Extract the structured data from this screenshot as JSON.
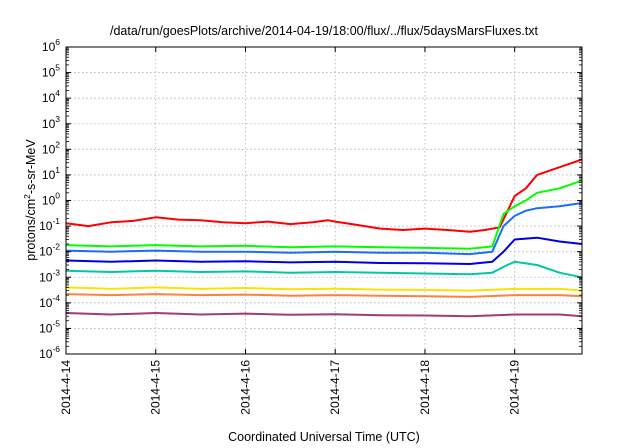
{
  "chart_data": {
    "type": "line",
    "title": "/data/run/goesPlots/archive/2014-04-19/18:00/flux/../flux/5daysMarsFluxes.txt",
    "xlabel": "Coordinated Universal Time (UTC)",
    "ylabel": "protons/cm²-s-sr-MeV",
    "ylabel_parts": {
      "pre": "protons/cm",
      "sup": "2",
      "post": "-s-sr-MeV"
    },
    "yscale": "log",
    "ylim": [
      1e-06,
      1000000.0
    ],
    "y_ticks": [
      {
        "base": "10",
        "exp": "-6",
        "value": 1e-06
      },
      {
        "base": "10",
        "exp": "-5",
        "value": 1e-05
      },
      {
        "base": "10",
        "exp": "-4",
        "value": 0.0001
      },
      {
        "base": "10",
        "exp": "-3",
        "value": 0.001
      },
      {
        "base": "10",
        "exp": "-2",
        "value": 0.01
      },
      {
        "base": "10",
        "exp": "-1",
        "value": 0.1
      },
      {
        "base": "10",
        "exp": "0",
        "value": 1
      },
      {
        "base": "10",
        "exp": "1",
        "value": 10.0
      },
      {
        "base": "10",
        "exp": "2",
        "value": 100.0
      },
      {
        "base": "10",
        "exp": "3",
        "value": 1000.0
      },
      {
        "base": "10",
        "exp": "4",
        "value": 10000.0
      },
      {
        "base": "10",
        "exp": "5",
        "value": 100000.0
      },
      {
        "base": "10",
        "exp": "6",
        "value": 1000000.0
      }
    ],
    "xlim": [
      "2014-04-14",
      "2014-04-19T18:00"
    ],
    "x_ticks": [
      {
        "label": "2014-4-14",
        "date": "2014-04-14"
      },
      {
        "label": "2014-4-15",
        "date": "2014-04-15"
      },
      {
        "label": "2014-4-16",
        "date": "2014-04-16"
      },
      {
        "label": "2014-4-17",
        "date": "2014-04-17"
      },
      {
        "label": "2014-4-18",
        "date": "2014-04-18"
      },
      {
        "label": "2014-4-19",
        "date": "2014-04-19"
      }
    ],
    "grid": true,
    "legend": "none",
    "series": [
      {
        "color": "#ff0000",
        "values": [
          [
            "2014-04-14T00:00",
            0.13
          ],
          [
            "2014-04-14T06:00",
            0.1
          ],
          [
            "2014-04-14T12:00",
            0.14
          ],
          [
            "2014-04-14T18:00",
            0.16
          ],
          [
            "2014-04-15T00:00",
            0.22
          ],
          [
            "2014-04-15T06:00",
            0.18
          ],
          [
            "2014-04-15T12:00",
            0.17
          ],
          [
            "2014-04-15T18:00",
            0.14
          ],
          [
            "2014-04-16T00:00",
            0.13
          ],
          [
            "2014-04-16T06:00",
            0.15
          ],
          [
            "2014-04-16T12:00",
            0.12
          ],
          [
            "2014-04-16T18:00",
            0.14
          ],
          [
            "2014-04-16T22:00",
            0.17
          ],
          [
            "2014-04-17T00:00",
            0.15
          ],
          [
            "2014-04-17T06:00",
            0.11
          ],
          [
            "2014-04-17T12:00",
            0.08
          ],
          [
            "2014-04-17T18:00",
            0.07
          ],
          [
            "2014-04-18T00:00",
            0.08
          ],
          [
            "2014-04-18T06:00",
            0.07
          ],
          [
            "2014-04-18T12:00",
            0.06
          ],
          [
            "2014-04-18T16:00",
            0.07
          ],
          [
            "2014-04-18T20:00",
            0.09
          ],
          [
            "2014-04-19T00:00",
            1.5
          ],
          [
            "2014-04-19T03:00",
            3
          ],
          [
            "2014-04-19T06:00",
            10
          ],
          [
            "2014-04-19T12:00",
            20
          ],
          [
            "2014-04-19T18:00",
            40
          ]
        ]
      },
      {
        "color": "#00ff00",
        "values": [
          [
            "2014-04-14T00:00",
            0.018
          ],
          [
            "2014-04-14T12:00",
            0.016
          ],
          [
            "2014-04-15T00:00",
            0.018
          ],
          [
            "2014-04-15T12:00",
            0.016
          ],
          [
            "2014-04-16T00:00",
            0.017
          ],
          [
            "2014-04-16T12:00",
            0.015
          ],
          [
            "2014-04-17T00:00",
            0.016
          ],
          [
            "2014-04-17T12:00",
            0.015
          ],
          [
            "2014-04-18T00:00",
            0.014
          ],
          [
            "2014-04-18T12:00",
            0.013
          ],
          [
            "2014-04-18T18:00",
            0.016
          ],
          [
            "2014-04-18T21:00",
            0.3
          ],
          [
            "2014-04-19T00:00",
            0.6
          ],
          [
            "2014-04-19T03:00",
            1
          ],
          [
            "2014-04-19T06:00",
            2
          ],
          [
            "2014-04-19T12:00",
            3
          ],
          [
            "2014-04-19T18:00",
            6
          ]
        ]
      },
      {
        "color": "#1a6cff",
        "values": [
          [
            "2014-04-14T00:00",
            0.011
          ],
          [
            "2014-04-14T12:00",
            0.01
          ],
          [
            "2014-04-15T00:00",
            0.011
          ],
          [
            "2014-04-15T12:00",
            0.01
          ],
          [
            "2014-04-16T00:00",
            0.01
          ],
          [
            "2014-04-16T12:00",
            0.009
          ],
          [
            "2014-04-17T00:00",
            0.01
          ],
          [
            "2014-04-17T12:00",
            0.009
          ],
          [
            "2014-04-18T00:00",
            0.009
          ],
          [
            "2014-04-18T12:00",
            0.008
          ],
          [
            "2014-04-18T18:00",
            0.01
          ],
          [
            "2014-04-18T21:00",
            0.1
          ],
          [
            "2014-04-19T00:00",
            0.25
          ],
          [
            "2014-04-19T03:00",
            0.4
          ],
          [
            "2014-04-19T06:00",
            0.5
          ],
          [
            "2014-04-19T12:00",
            0.6
          ],
          [
            "2014-04-19T18:00",
            0.8
          ]
        ]
      },
      {
        "color": "#0000e0",
        "values": [
          [
            "2014-04-14T00:00",
            0.0045
          ],
          [
            "2014-04-14T12:00",
            0.004
          ],
          [
            "2014-04-15T00:00",
            0.0045
          ],
          [
            "2014-04-15T12:00",
            0.004
          ],
          [
            "2014-04-16T00:00",
            0.0042
          ],
          [
            "2014-04-16T12:00",
            0.0038
          ],
          [
            "2014-04-17T00:00",
            0.004
          ],
          [
            "2014-04-17T12:00",
            0.0036
          ],
          [
            "2014-04-18T00:00",
            0.0035
          ],
          [
            "2014-04-18T12:00",
            0.0033
          ],
          [
            "2014-04-18T18:00",
            0.004
          ],
          [
            "2014-04-18T21:00",
            0.01
          ],
          [
            "2014-04-19T00:00",
            0.03
          ],
          [
            "2014-04-19T06:00",
            0.035
          ],
          [
            "2014-04-19T12:00",
            0.025
          ],
          [
            "2014-04-19T18:00",
            0.02
          ]
        ]
      },
      {
        "color": "#00c8a0",
        "values": [
          [
            "2014-04-14T00:00",
            0.0018
          ],
          [
            "2014-04-14T12:00",
            0.0016
          ],
          [
            "2014-04-15T00:00",
            0.0018
          ],
          [
            "2014-04-15T12:00",
            0.0016
          ],
          [
            "2014-04-16T00:00",
            0.0017
          ],
          [
            "2014-04-16T12:00",
            0.0015
          ],
          [
            "2014-04-17T00:00",
            0.0016
          ],
          [
            "2014-04-17T12:00",
            0.0015
          ],
          [
            "2014-04-18T00:00",
            0.0014
          ],
          [
            "2014-04-18T12:00",
            0.0013
          ],
          [
            "2014-04-18T18:00",
            0.0015
          ],
          [
            "2014-04-18T22:00",
            0.003
          ],
          [
            "2014-04-19T00:00",
            0.004
          ],
          [
            "2014-04-19T06:00",
            0.003
          ],
          [
            "2014-04-19T12:00",
            0.0015
          ],
          [
            "2014-04-19T18:00",
            0.001
          ]
        ]
      },
      {
        "color": "#ffe000",
        "values": [
          [
            "2014-04-14T00:00",
            0.0004
          ],
          [
            "2014-04-14T12:00",
            0.00035
          ],
          [
            "2014-04-15T00:00",
            0.0004
          ],
          [
            "2014-04-15T12:00",
            0.00035
          ],
          [
            "2014-04-16T00:00",
            0.00038
          ],
          [
            "2014-04-16T12:00",
            0.00034
          ],
          [
            "2014-04-17T00:00",
            0.00036
          ],
          [
            "2014-04-17T12:00",
            0.00033
          ],
          [
            "2014-04-18T00:00",
            0.00032
          ],
          [
            "2014-04-18T12:00",
            0.0003
          ],
          [
            "2014-04-19T00:00",
            0.00035
          ],
          [
            "2014-04-19T12:00",
            0.00035
          ],
          [
            "2014-04-19T18:00",
            0.0003
          ]
        ]
      },
      {
        "color": "#ff8040",
        "values": [
          [
            "2014-04-14T00:00",
            0.00022
          ],
          [
            "2014-04-14T12:00",
            0.0002
          ],
          [
            "2014-04-15T00:00",
            0.00022
          ],
          [
            "2014-04-15T12:00",
            0.0002
          ],
          [
            "2014-04-16T00:00",
            0.00021
          ],
          [
            "2014-04-16T12:00",
            0.00019
          ],
          [
            "2014-04-17T00:00",
            0.0002
          ],
          [
            "2014-04-17T12:00",
            0.00019
          ],
          [
            "2014-04-18T00:00",
            0.00018
          ],
          [
            "2014-04-18T12:00",
            0.00017
          ],
          [
            "2014-04-19T00:00",
            0.0002
          ],
          [
            "2014-04-19T12:00",
            0.0002
          ],
          [
            "2014-04-19T18:00",
            0.00018
          ]
        ]
      },
      {
        "color": "#a03c78",
        "values": [
          [
            "2014-04-14T00:00",
            4e-05
          ],
          [
            "2014-04-14T12:00",
            3.5e-05
          ],
          [
            "2014-04-15T00:00",
            4e-05
          ],
          [
            "2014-04-15T12:00",
            3.5e-05
          ],
          [
            "2014-04-16T00:00",
            3.8e-05
          ],
          [
            "2014-04-16T12:00",
            3.4e-05
          ],
          [
            "2014-04-17T00:00",
            3.6e-05
          ],
          [
            "2014-04-17T12:00",
            3.3e-05
          ],
          [
            "2014-04-18T00:00",
            3.2e-05
          ],
          [
            "2014-04-18T12:00",
            3e-05
          ],
          [
            "2014-04-19T00:00",
            3.5e-05
          ],
          [
            "2014-04-19T12:00",
            3.5e-05
          ],
          [
            "2014-04-19T18:00",
            3e-05
          ]
        ]
      }
    ]
  }
}
